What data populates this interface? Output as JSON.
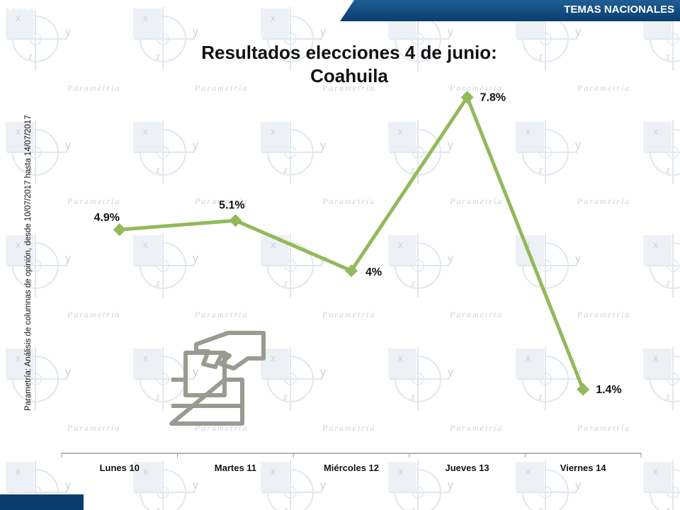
{
  "header": {
    "section_label": "TEMAS NACIONALES"
  },
  "footer": {
    "logo_text": "Parametría"
  },
  "side_note": "Parametría: Análisis de columnas de opinión, desde 10/07/2017 hasta 14/07/2017",
  "colors": {
    "line": "#93b95a",
    "banner": "#0b3d6e",
    "icon": "#9a9a92"
  },
  "icon": "ballot-box-icon",
  "chart_data": {
    "type": "line",
    "title_line1": "Resultados elecciones 4 de junio:",
    "title_line2": "Coahuila",
    "categories": [
      "Lunes 10",
      "Martes 11",
      "Miércoles 12",
      "Jueves 13",
      "Viernes 14"
    ],
    "values": [
      4.9,
      5.1,
      4,
      7.8,
      1.4
    ],
    "data_labels": [
      "4.9%",
      "5.1%",
      "4%",
      "7.8%",
      "1.4%"
    ],
    "ylim": [
      0,
      9
    ],
    "grid": false,
    "legend": "none"
  }
}
